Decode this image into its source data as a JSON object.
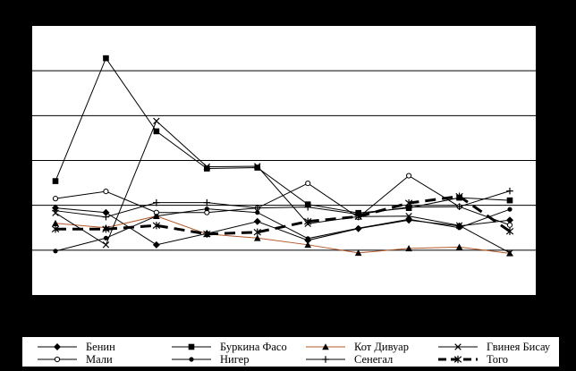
{
  "colors": {
    "background": "#000000",
    "plot_area": "#ffffff",
    "gridline": "#000000",
    "legend_bg": "#ffffff"
  },
  "chart_data": {
    "type": "line",
    "title": "",
    "xlabel": "",
    "ylabel": "",
    "x": [
      1,
      2,
      3,
      4,
      5,
      6,
      7,
      8,
      9,
      10
    ],
    "ylim": [
      0,
      6
    ],
    "grid": true,
    "legend_position": "bottom",
    "series": [
      {
        "name": "Бенин",
        "marker": "diamond-filled",
        "color": "#000000",
        "dash": "none",
        "width": 1,
        "values": [
          1.94,
          1.84,
          1.12,
          1.37,
          1.64,
          1.22,
          1.48,
          1.67,
          1.54,
          1.67
        ]
      },
      {
        "name": "Буркина Фасо",
        "marker": "square-filled",
        "color": "#000000",
        "dash": "none",
        "width": 1,
        "values": [
          2.54,
          5.28,
          3.65,
          2.82,
          2.84,
          2.02,
          1.83,
          1.94,
          2.17,
          2.11
        ]
      },
      {
        "name": "Кот Дивуар",
        "marker": "triangle-filled",
        "color": "#b5582a",
        "dash": "none",
        "width": 1,
        "values": [
          1.6,
          1.5,
          1.76,
          1.36,
          1.27,
          1.12,
          0.94,
          1.04,
          1.07,
          0.93
        ]
      },
      {
        "name": "Гвинея Бисау",
        "marker": "x",
        "color": "#000000",
        "dash": "none",
        "width": 1,
        "values": [
          1.83,
          1.12,
          3.88,
          2.86,
          2.87,
          1.59,
          1.75,
          1.76,
          1.55,
          0.94
        ]
      },
      {
        "name": "Мали",
        "marker": "circle-open",
        "color": "#000000",
        "dash": "none",
        "width": 1,
        "values": [
          2.15,
          2.31,
          1.84,
          1.84,
          1.94,
          2.49,
          1.73,
          2.66,
          1.97,
          1.56
        ]
      },
      {
        "name": "Нигер",
        "marker": "circle-filled",
        "color": "#000000",
        "dash": "none",
        "width": 1,
        "values": [
          0.98,
          1.27,
          1.76,
          1.92,
          1.84,
          1.26,
          1.49,
          1.69,
          1.5,
          1.91
        ]
      },
      {
        "name": "Сенегал",
        "marker": "plus",
        "color": "#000000",
        "dash": "none",
        "width": 1,
        "values": [
          1.88,
          1.74,
          2.06,
          2.06,
          1.94,
          1.96,
          1.8,
          1.96,
          1.97,
          2.32
        ]
      },
      {
        "name": "Того",
        "marker": "star",
        "color": "#000000",
        "dash": "long",
        "width": 3,
        "values": [
          1.47,
          1.47,
          1.55,
          1.36,
          1.4,
          1.64,
          1.75,
          2.05,
          2.2,
          1.42
        ]
      }
    ]
  }
}
